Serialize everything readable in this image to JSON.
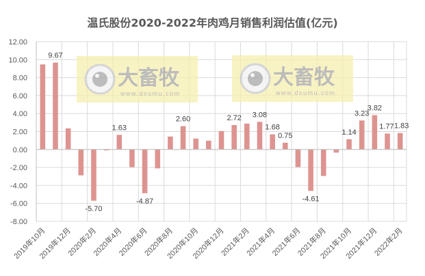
{
  "chart_data": {
    "type": "bar",
    "title": "温氏股份2020-2022年肉鸡月销售利润估值(亿元)",
    "xlabel": "",
    "ylabel": "",
    "ylim": [
      -8,
      12
    ],
    "yticks": [
      "12.00",
      "10.00",
      "8.00",
      "6.00",
      "4.00",
      "2.00",
      "0.00",
      "-2.00",
      "-4.00",
      "-6.00",
      "-8.00"
    ],
    "ytick_values": [
      12,
      10,
      8,
      6,
      4,
      2,
      0,
      -2,
      -4,
      -6,
      -8
    ],
    "grid": true,
    "legend": null,
    "categories": [
      "2019年10月",
      "2019年11月",
      "2019年12月",
      "2020年1月",
      "2020年2月",
      "2020年3月",
      "2020年4月",
      "2020年5月",
      "2020年6月",
      "2020年7月",
      "2020年8月",
      "2020年9月",
      "2020年10月",
      "2020年11月",
      "2020年12月",
      "2021年1月",
      "2021年2月",
      "2021年3月",
      "2021年4月",
      "2021年5月",
      "2021年6月",
      "2021年7月",
      "2021年8月",
      "2021年9月",
      "2021年10月",
      "2021年11月",
      "2021年12月",
      "2022年1月",
      "2022年2月"
    ],
    "visible_xtick_labels": [
      "2019年10月",
      "2019年12月",
      "2020年2月",
      "2020年4月",
      "2020年6月",
      "2020年8月",
      "2020年10月",
      "2020年12月",
      "2021年2月",
      "2021年4月",
      "2021年6月",
      "2021年8月",
      "2021年10月",
      "2021年12月",
      "2022年2月"
    ],
    "values": [
      9.47,
      9.67,
      2.35,
      -2.88,
      -5.7,
      -0.1,
      1.63,
      -1.97,
      -4.87,
      -2.1,
      1.44,
      2.6,
      1.21,
      0.98,
      2.05,
      2.72,
      2.88,
      3.08,
      1.68,
      0.75,
      -1.95,
      -4.61,
      -2.95,
      -0.35,
      1.14,
      3.23,
      3.82,
      1.77,
      1.83
    ],
    "data_labels": [
      {
        "index": 1,
        "text": "9.67"
      },
      {
        "index": 4,
        "text": "-5.70"
      },
      {
        "index": 6,
        "text": "1.63"
      },
      {
        "index": 8,
        "text": "-4.87"
      },
      {
        "index": 11,
        "text": "2.60"
      },
      {
        "index": 15,
        "text": "2.72"
      },
      {
        "index": 17,
        "text": "3.08"
      },
      {
        "index": 18,
        "text": "1.68"
      },
      {
        "index": 19,
        "text": "0.75"
      },
      {
        "index": 21,
        "text": "-4.61"
      },
      {
        "index": 24,
        "text": "1.14"
      },
      {
        "index": 25,
        "text": "3.23"
      },
      {
        "index": 26,
        "text": "3.82"
      },
      {
        "index": 27,
        "text": "1.77"
      },
      {
        "index": 28,
        "text": "1.83"
      }
    ],
    "colors": {
      "bar": "#DD9490",
      "grid": "#D9D9D9",
      "axis_text": "#595959",
      "label_text": "#404040",
      "title": "#595959"
    }
  },
  "watermarks": [
    {
      "brand": "大畜牧",
      "url": "www.dxumu.com"
    },
    {
      "brand": "大畜牧",
      "url": "www.dxumu.com"
    }
  ]
}
